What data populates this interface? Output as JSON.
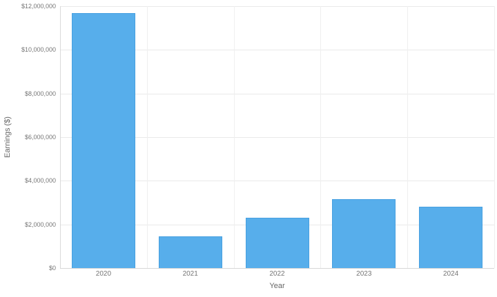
{
  "chart_data": {
    "type": "bar",
    "title": "",
    "xlabel": "Year",
    "ylabel": "Earnings ($)",
    "categories": [
      "2020",
      "2021",
      "2022",
      "2023",
      "2024"
    ],
    "values": [
      11700000,
      1450000,
      2300000,
      3150000,
      2800000
    ],
    "ylim": [
      0,
      12000000
    ],
    "y_ticks": [
      {
        "value": 0,
        "label": "$0"
      },
      {
        "value": 2000000,
        "label": "$2,000,000"
      },
      {
        "value": 4000000,
        "label": "$4,000,000"
      },
      {
        "value": 6000000,
        "label": "$6,000,000"
      },
      {
        "value": 8000000,
        "label": "$8,000,000"
      },
      {
        "value": 10000000,
        "label": "$10,000,000"
      },
      {
        "value": 12000000,
        "label": "$12,000,000"
      }
    ],
    "grid": true,
    "legend_position": "none",
    "bar_color": "#57aeeb",
    "bar_border_color": "#47a0e0",
    "grid_color": "#e9e9e9",
    "tick_text_color": "#757575",
    "axis_title_color": "#666666"
  }
}
